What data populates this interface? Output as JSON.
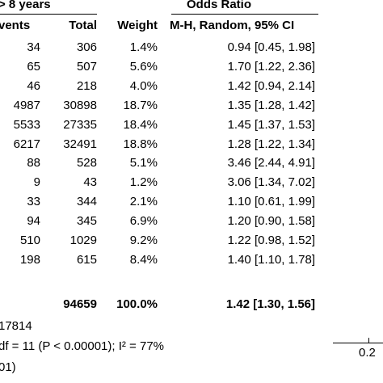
{
  "chart_data": {
    "type": "table",
    "group_header": "> 8 years",
    "odds_ratio_header": "Odds Ratio",
    "columns": [
      "vents",
      "Total",
      "Weight",
      "M-H, Random, 95% CI"
    ],
    "rows": [
      {
        "events": "34",
        "total": "306",
        "weight": "1.4%",
        "or": "0.94 [0.45, 1.98]"
      },
      {
        "events": "65",
        "total": "507",
        "weight": "5.6%",
        "or": "1.70 [1.22, 2.36]"
      },
      {
        "events": "46",
        "total": "218",
        "weight": "4.0%",
        "or": "1.42 [0.94, 2.14]"
      },
      {
        "events": "4987",
        "total": "30898",
        "weight": "18.7%",
        "or": "1.35 [1.28, 1.42]"
      },
      {
        "events": "5533",
        "total": "27335",
        "weight": "18.4%",
        "or": "1.45 [1.37, 1.53]"
      },
      {
        "events": "6217",
        "total": "32491",
        "weight": "18.8%",
        "or": "1.28 [1.22, 1.34]"
      },
      {
        "events": "88",
        "total": "528",
        "weight": "5.1%",
        "or": "3.46 [2.44, 4.91]"
      },
      {
        "events": "9",
        "total": "43",
        "weight": "1.2%",
        "or": "3.06 [1.34, 7.02]"
      },
      {
        "events": "33",
        "total": "344",
        "weight": "2.1%",
        "or": "1.10 [0.61, 1.99]"
      },
      {
        "events": "94",
        "total": "345",
        "weight": "6.9%",
        "or": "1.20 [0.90, 1.58]"
      },
      {
        "events": "510",
        "total": "1029",
        "weight": "9.2%",
        "or": "1.22 [0.98, 1.52]"
      },
      {
        "events": "198",
        "total": "615",
        "weight": "8.4%",
        "or": "1.40 [1.10, 1.78]"
      }
    ],
    "total_row": {
      "total": "94659",
      "weight": "100.0%",
      "or": "1.42 [1.30, 1.56]"
    },
    "footer": {
      "events_total": "17814",
      "heterogeneity": "df = 11 (P < 0.00001); I² = 77%",
      "overall_effect": "01)"
    },
    "axis_tick_label": "0.2"
  }
}
